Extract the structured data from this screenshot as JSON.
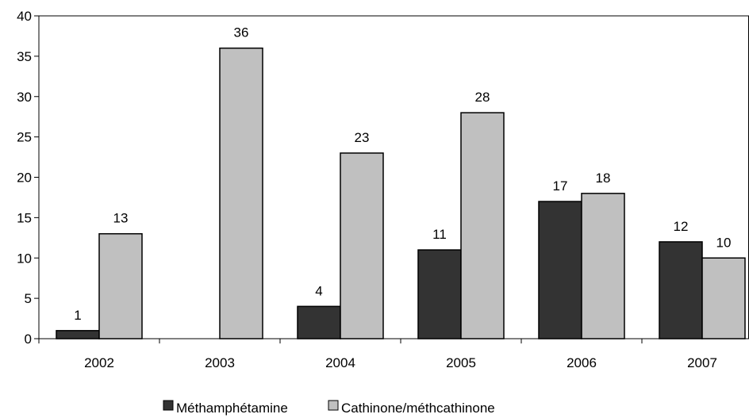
{
  "chart_data": {
    "type": "bar",
    "categories": [
      "2002",
      "2003",
      "2004",
      "2005",
      "2006",
      "2007"
    ],
    "series": [
      {
        "name": "Méthamphétamine",
        "values": [
          1,
          null,
          4,
          11,
          17,
          12
        ],
        "color": "#333333"
      },
      {
        "name": "Cathinone/méthcathinone",
        "values": [
          13,
          36,
          23,
          28,
          18,
          10
        ],
        "color": "#c0c0c0"
      }
    ],
    "data_labels": [
      [
        "1",
        "",
        "4",
        "11",
        "17",
        "12"
      ],
      [
        "13",
        "36",
        "23",
        "28",
        "18",
        "10"
      ]
    ],
    "ylim": [
      0,
      40
    ],
    "y_ticks": [
      0,
      5,
      10,
      15,
      20,
      25,
      30,
      35,
      40
    ],
    "y_tick_labels": [
      "0",
      "5",
      "10",
      "15",
      "20",
      "25",
      "30",
      "35",
      "40"
    ],
    "grid": false,
    "legend_position": "bottom"
  }
}
